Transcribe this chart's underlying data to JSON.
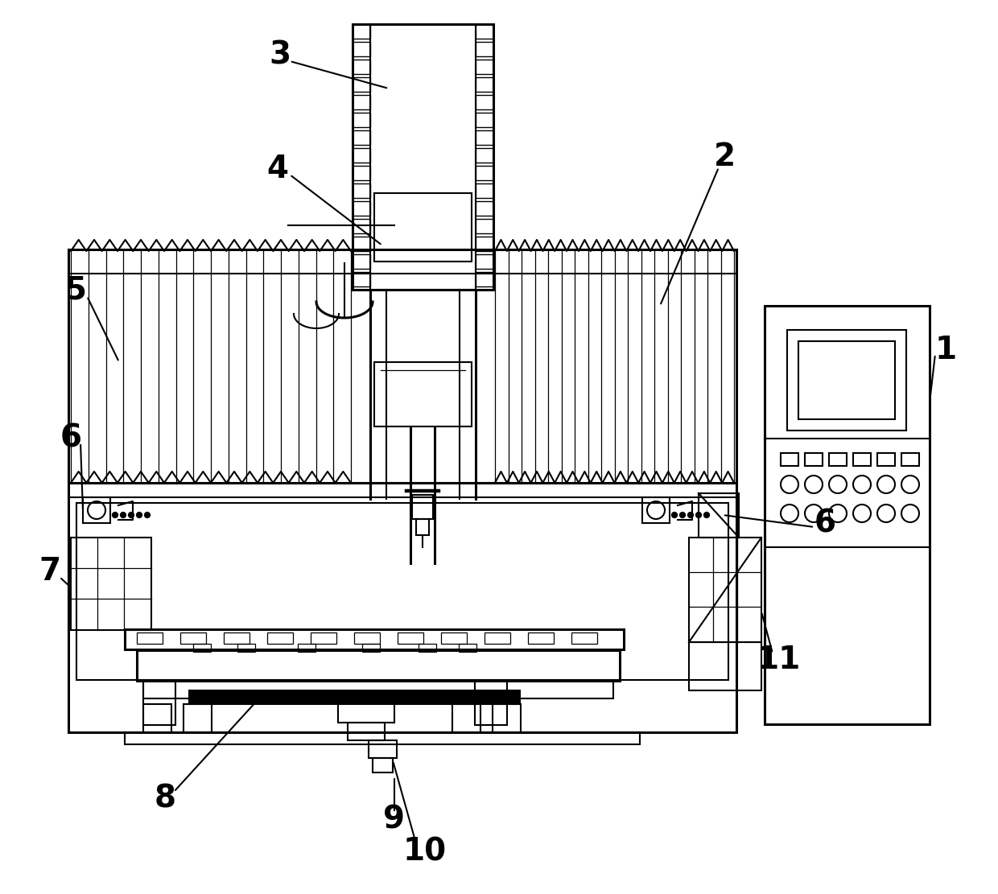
{
  "bg_color": "#ffffff",
  "line_color": "#000000",
  "lw": 1.5,
  "lw_thick": 2.2,
  "lw_thin": 0.9
}
